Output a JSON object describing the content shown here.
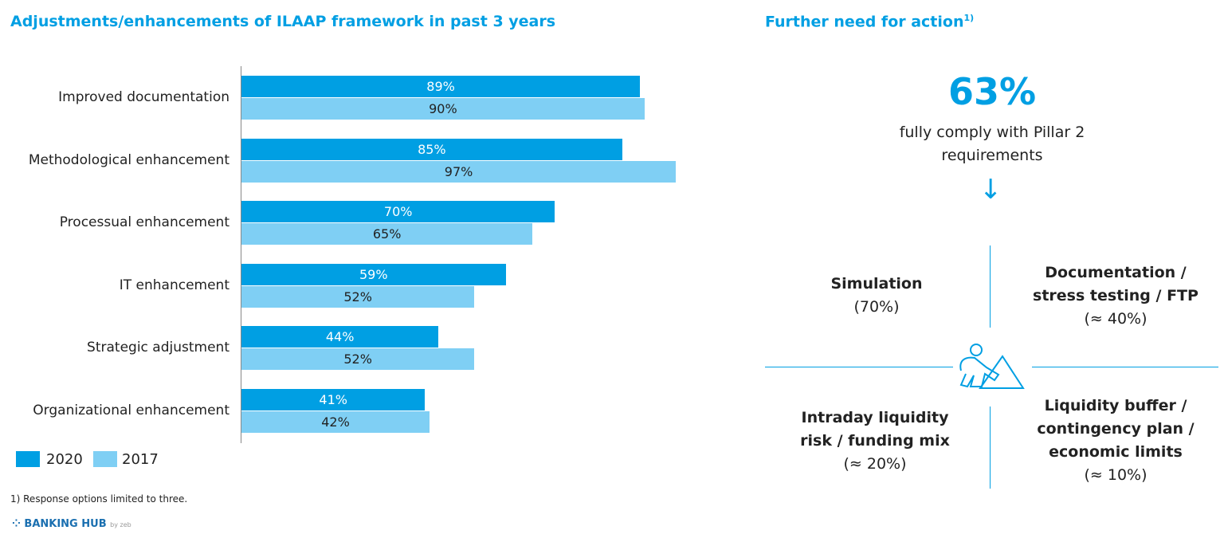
{
  "left": {
    "title": "Adjustments/enhancements of ILAAP framework in past 3 years"
  },
  "chart_data": {
    "type": "bar",
    "orientation": "horizontal",
    "categories": [
      "Improved documentation",
      "Methodological enhancement",
      "Processual enhancement",
      "IT enhancement",
      "Strategic adjustment",
      "Organizational enhancement"
    ],
    "series": [
      {
        "name": "2020",
        "color": "#009fe3",
        "values": [
          89,
          85,
          70,
          59,
          44,
          41
        ],
        "labels": [
          "89%",
          "85%",
          "70%",
          "59%",
          "44%",
          "41%"
        ]
      },
      {
        "name": "2017",
        "color": "#7fcff4",
        "values": [
          90,
          97,
          65,
          52,
          52,
          42
        ],
        "labels": [
          "90%",
          "97%",
          "65%",
          "52%",
          "52%",
          "42%"
        ]
      }
    ],
    "xlim": [
      0,
      100
    ],
    "legend": "bottom-left",
    "grid": false
  },
  "footnote": "1) Response options limited to three.",
  "logo": {
    "text": "BANKING HUB",
    "sub": "by zeb"
  },
  "right": {
    "title": "Further need for action",
    "title_sup": "1)",
    "big_value": "63%",
    "big_caption_1": "fully comply with Pillar 2",
    "big_caption_2": "requirements",
    "arrow": "arrow-down-icon",
    "q1": {
      "title": "Simulation",
      "value": "(70%)"
    },
    "q2": {
      "title_1": "Documentation /",
      "title_2": "stress testing / FTP",
      "value": "(≈ 40%)"
    },
    "q3": {
      "title_1": "Intraday liquidity",
      "title_2": "risk / funding mix",
      "value": "(≈ 20%)"
    },
    "q4": {
      "title_1": "Liquidity buffer /",
      "title_2": "contingency plan /",
      "title_3": "economic limits",
      "value": "(≈ 10%)"
    }
  }
}
